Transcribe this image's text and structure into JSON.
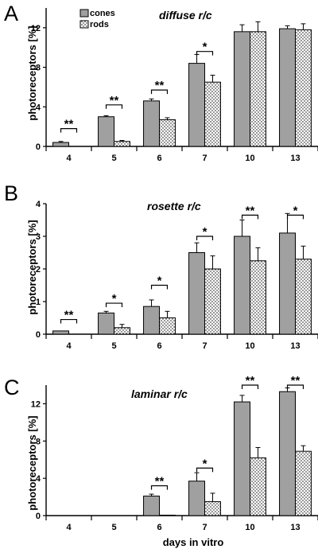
{
  "chart_data": [
    {
      "type": "bar",
      "panel_label": "A",
      "title": "diffuse r/c",
      "ylabel": "photoreceptors [%]",
      "xlabel": "",
      "categories": [
        "4",
        "5",
        "6",
        "7",
        "10",
        "13"
      ],
      "ylim": [
        0,
        14
      ],
      "yticks": [
        "0",
        "4",
        "8",
        "12"
      ],
      "ytick_values": [
        0,
        4,
        8,
        12
      ],
      "grid": false,
      "legend": "top-left",
      "series": [
        {
          "name": "cones",
          "values": [
            0.4,
            3.0,
            4.6,
            8.4,
            11.6,
            11.9
          ],
          "errors": [
            0.1,
            0.1,
            0.2,
            0.9,
            0.7,
            0.3
          ],
          "color": "#a0a0a0",
          "pattern": "solid"
        },
        {
          "name": "rods",
          "values": [
            0.0,
            0.5,
            2.7,
            6.5,
            11.6,
            11.8
          ],
          "errors": [
            0.0,
            0.1,
            0.2,
            0.7,
            1.0,
            0.6
          ],
          "color": "#ffffff",
          "pattern": "dots"
        }
      ],
      "significance": [
        {
          "category": "4",
          "label": "**",
          "y": 1.8
        },
        {
          "category": "5",
          "label": "**",
          "y": 4.2
        },
        {
          "category": "6",
          "label": "**",
          "y": 5.7
        },
        {
          "category": "7",
          "label": "*",
          "y": 9.6
        }
      ]
    },
    {
      "type": "bar",
      "panel_label": "B",
      "title": "rosette r/c",
      "ylabel": "photoreceptors [%]",
      "xlabel": "",
      "categories": [
        "4",
        "5",
        "6",
        "7",
        "10",
        "13"
      ],
      "ylim": [
        0,
        4
      ],
      "yticks": [
        "0",
        "1",
        "2",
        "3",
        "4"
      ],
      "ytick_values": [
        0,
        1,
        2,
        3,
        4
      ],
      "grid": false,
      "legend": "none",
      "series": [
        {
          "name": "cones",
          "values": [
            0.1,
            0.65,
            0.85,
            2.5,
            3.0,
            3.1
          ],
          "errors": [
            0.0,
            0.05,
            0.2,
            0.3,
            0.5,
            0.6
          ],
          "color": "#a0a0a0",
          "pattern": "solid"
        },
        {
          "name": "rods",
          "values": [
            0.0,
            0.2,
            0.5,
            2.0,
            2.25,
            2.3
          ],
          "errors": [
            0.0,
            0.1,
            0.2,
            0.4,
            0.4,
            0.4
          ],
          "color": "#ffffff",
          "pattern": "dots"
        }
      ],
      "significance": [
        {
          "category": "4",
          "label": "**",
          "y": 0.45
        },
        {
          "category": "5",
          "label": "*",
          "y": 0.95
        },
        {
          "category": "6",
          "label": "*",
          "y": 1.5
        },
        {
          "category": "7",
          "label": "*",
          "y": 3.0
        },
        {
          "category": "10",
          "label": "**",
          "y": 3.65
        },
        {
          "category": "13",
          "label": "*",
          "y": 3.65
        }
      ]
    },
    {
      "type": "bar",
      "panel_label": "C",
      "title": "laminar r/c",
      "ylabel": "photoreceptors [%]",
      "xlabel": "days in vitro",
      "categories": [
        "4",
        "5",
        "6",
        "7",
        "10",
        "13"
      ],
      "ylim": [
        0,
        14
      ],
      "yticks": [
        "0",
        "4",
        "8",
        "12"
      ],
      "ytick_values": [
        0,
        4,
        8,
        12
      ],
      "grid": false,
      "legend": "none",
      "series": [
        {
          "name": "cones",
          "values": [
            0.0,
            0.0,
            2.1,
            3.7,
            12.2,
            13.3
          ],
          "errors": [
            0.0,
            0.0,
            0.2,
            0.9,
            0.7,
            0.4
          ],
          "color": "#a0a0a0",
          "pattern": "solid"
        },
        {
          "name": "rods",
          "values": [
            0.0,
            0.0,
            0.05,
            1.5,
            6.2,
            6.9
          ],
          "errors": [
            0.0,
            0.0,
            0.0,
            0.9,
            1.1,
            0.6
          ],
          "color": "#ffffff",
          "pattern": "dots"
        }
      ],
      "significance": [
        {
          "category": "6",
          "label": "**",
          "y": 3.2
        },
        {
          "category": "7",
          "label": "*",
          "y": 5.1
        },
        {
          "category": "10",
          "label": "**",
          "y": 14.0
        },
        {
          "category": "13",
          "label": "**",
          "y": 14.0
        }
      ]
    }
  ]
}
